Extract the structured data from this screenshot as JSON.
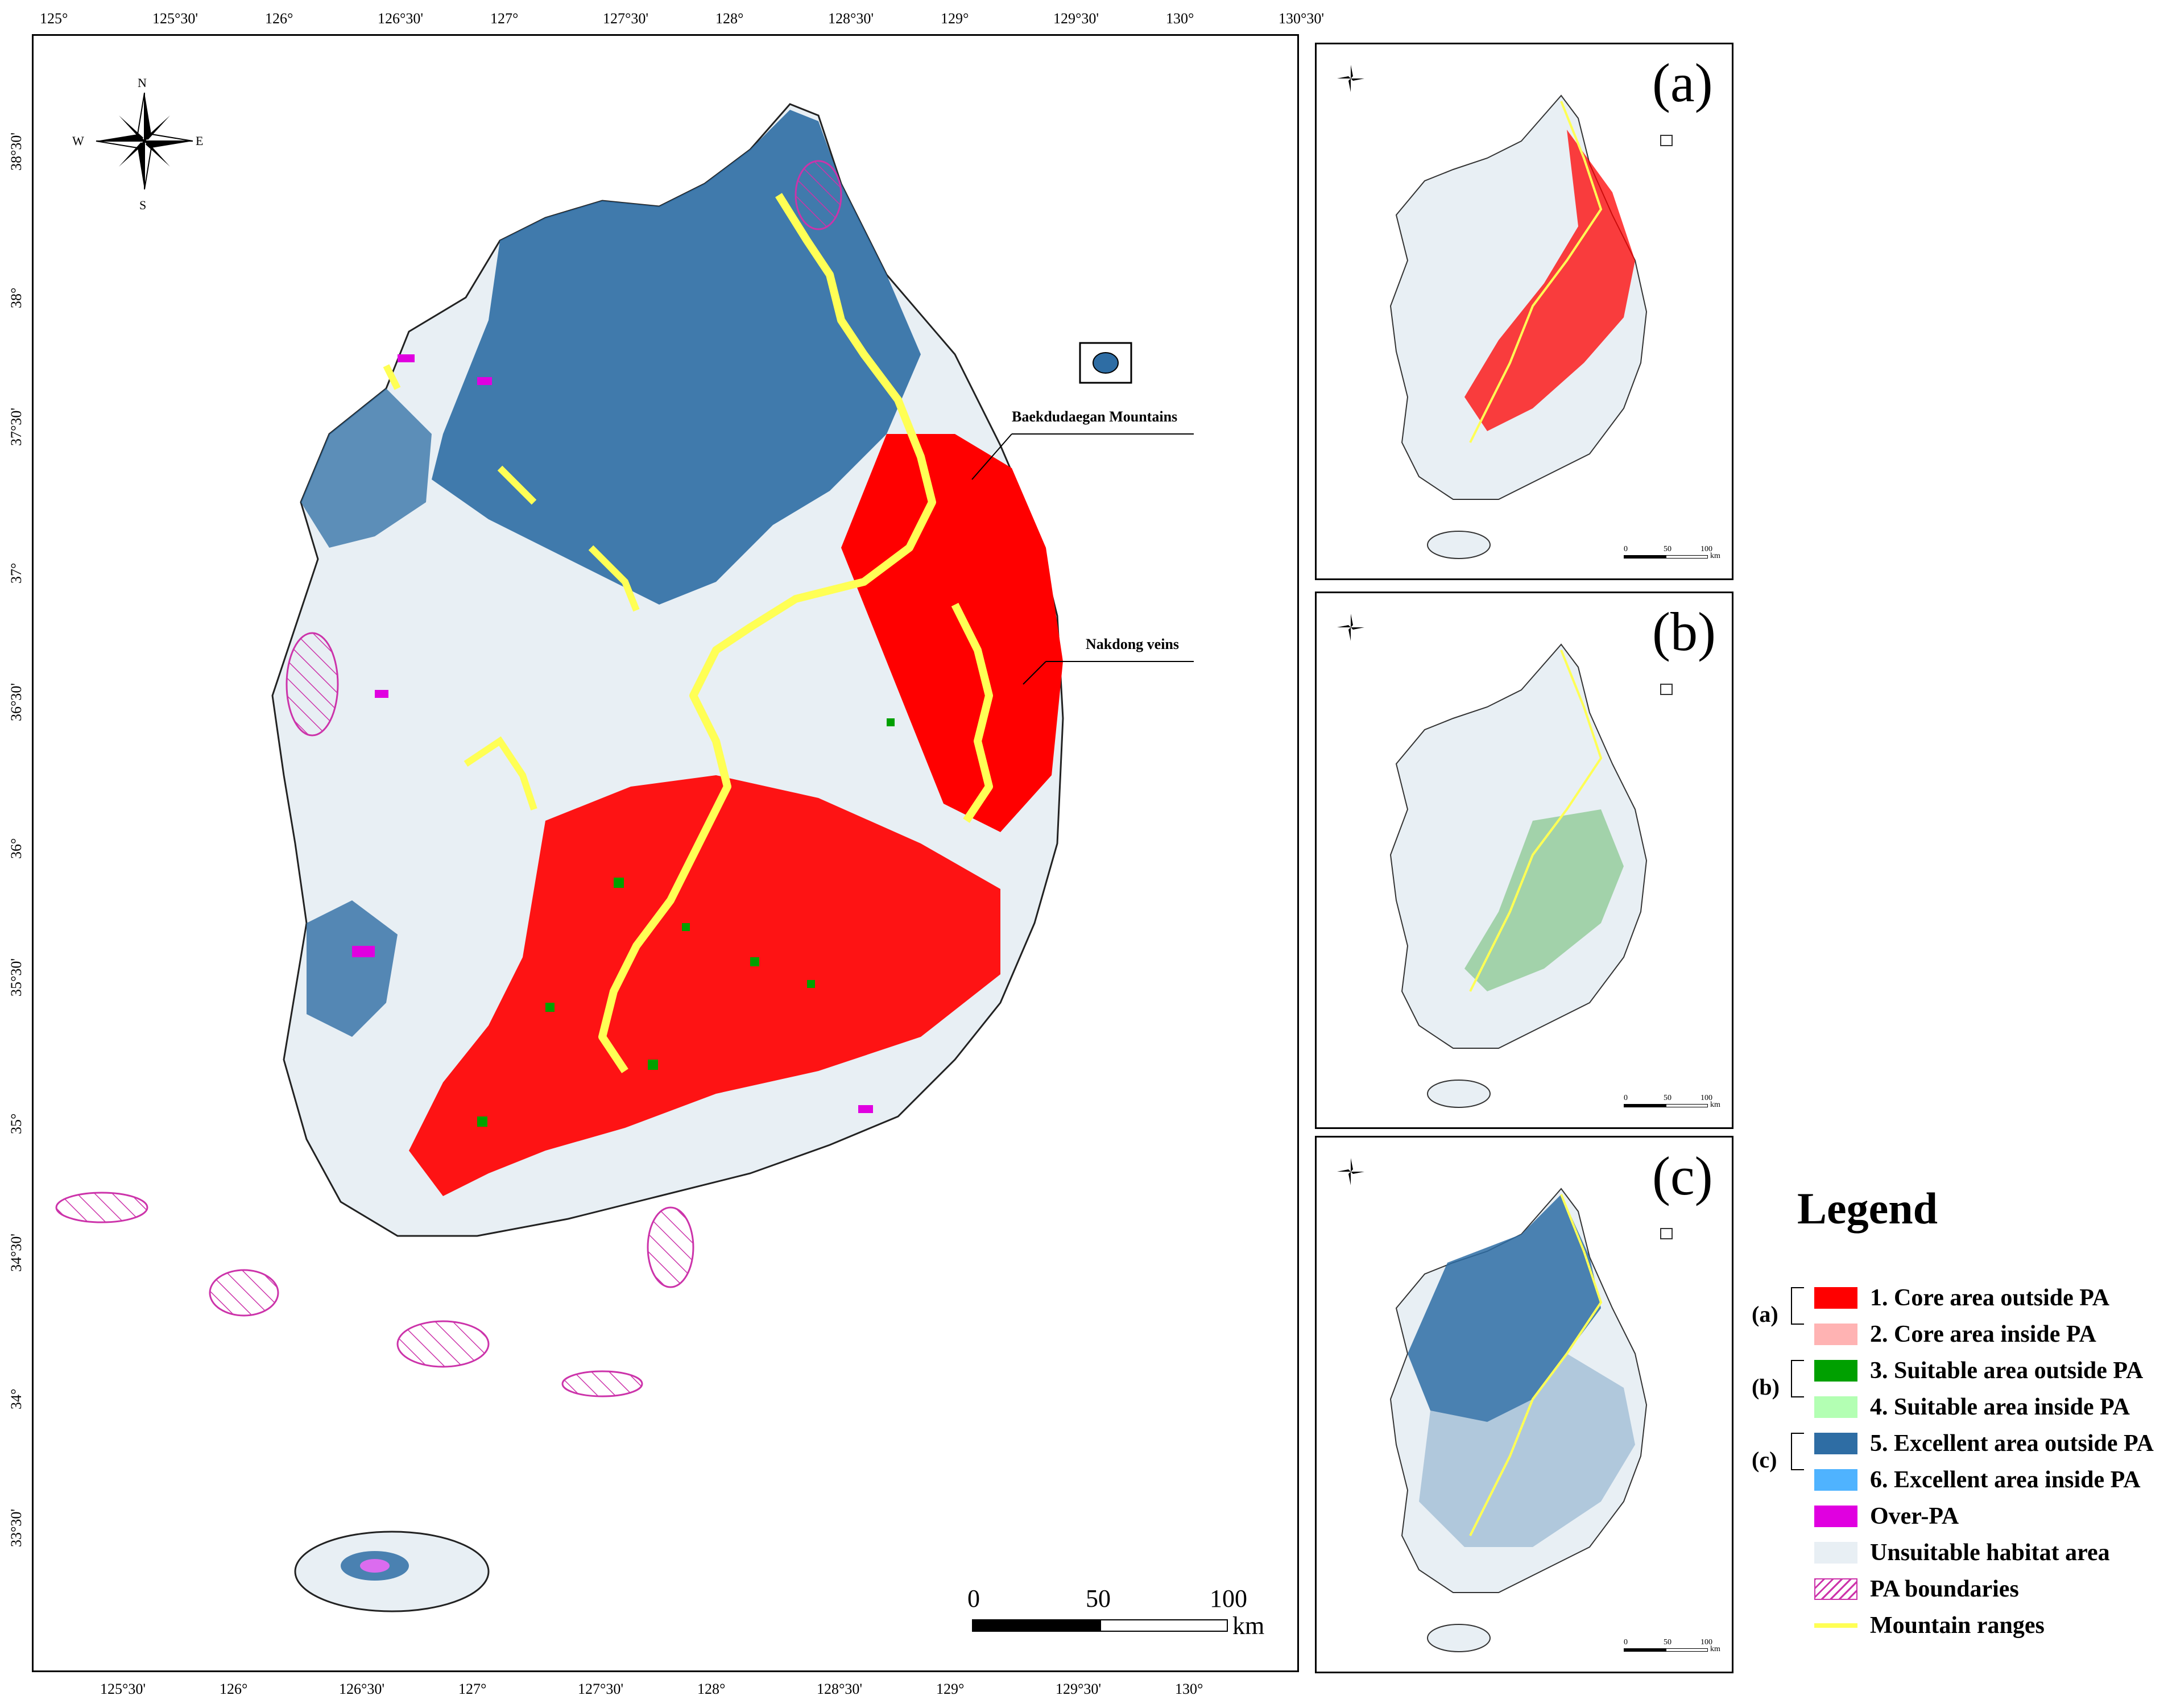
{
  "main_map": {
    "top_ticks": [
      "125°",
      "125°30'",
      "126°",
      "126°30'",
      "127°",
      "127°30'",
      "128°",
      "128°30'",
      "129°",
      "129°30'",
      "130°",
      "130°30'"
    ],
    "bottom_ticks": [
      "125°30'",
      "126°",
      "126°30'",
      "127°",
      "127°30'",
      "128°",
      "128°30'",
      "129°",
      "129°30'",
      "130°"
    ],
    "left_ticks": [
      "38°30'",
      "38°",
      "37°30'",
      "37°",
      "36°30'",
      "36°",
      "35°30'",
      "35°",
      "34°30'",
      "34°",
      "33°30'"
    ],
    "annotations": {
      "baekdudaegan": "Baekdudaegan Mountains",
      "nakdong": "Nakdong veins"
    },
    "compass": {
      "n": "N",
      "s": "S",
      "e": "E",
      "w": "W"
    },
    "scale_bar": {
      "zero": "0",
      "mid": "50",
      "max": "100",
      "unit": "km"
    }
  },
  "panels": [
    {
      "label": "(a)",
      "highlight_color": "#ff0000",
      "scale": {
        "zero": "0",
        "mid": "50",
        "max": "100",
        "unit": "km"
      }
    },
    {
      "label": "(b)",
      "highlight_color": "#1f9e1f",
      "scale": {
        "zero": "0",
        "mid": "50",
        "max": "100",
        "unit": "km"
      }
    },
    {
      "label": "(c)",
      "highlight_color": "#2e6da4",
      "scale": {
        "zero": "0",
        "mid": "50",
        "max": "100",
        "unit": "km"
      }
    }
  ],
  "legend": {
    "title": "Legend",
    "groups": [
      "(a)",
      "(b)",
      "(c)"
    ],
    "items": [
      {
        "label": "1. Core area outside PA",
        "color": "#ff0000"
      },
      {
        "label": "2. Core area inside PA",
        "color": "#ffb3b3"
      },
      {
        "label": "3. Suitable area outside PA",
        "color": "#00a000"
      },
      {
        "label": "4. Suitable area inside PA",
        "color": "#b3ffb3"
      },
      {
        "label": "5. Excellent area outside PA",
        "color": "#2e6da4"
      },
      {
        "label": "6. Excellent area inside PA",
        "color": "#4fb3ff"
      },
      {
        "label": "Over-PA",
        "color": "#e000e0"
      },
      {
        "label": "Unsuitable habitat area",
        "color": "#e8eff4"
      },
      {
        "label": "PA boundaries",
        "color": "#cc33aa"
      },
      {
        "label": "Mountain ranges",
        "color": "#ffff55"
      }
    ]
  }
}
